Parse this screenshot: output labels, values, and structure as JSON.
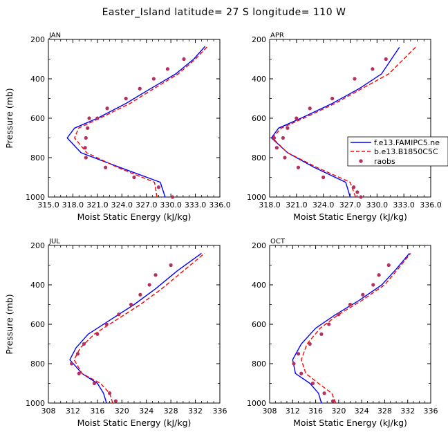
{
  "figure": {
    "title": "Easter_Island  latitude= 27 S longitude= 110 W"
  },
  "colors": {
    "model_line": "#0000ff",
    "coupled_line": "#ff0000",
    "obs_marker": "#b5305f",
    "axis": "#000000"
  },
  "legend": {
    "entries": [
      {
        "label": "f.e13.FAMIPC5.ne",
        "style": "solid-line",
        "color": "#0000ff"
      },
      {
        "label": "b.e13.B1850C5C",
        "style": "dashed-line",
        "color": "#ff0000"
      },
      {
        "label": "raobs",
        "style": "marker",
        "color": "#b5305f"
      }
    ]
  },
  "chart_data": [
    {
      "type": "line",
      "panel": "JAN",
      "title": "JAN",
      "xlabel": "Moist Static Energy (kJ/kg)",
      "ylabel": "Pressure (mb)",
      "xlim": [
        315,
        336
      ],
      "ylim": [
        1000,
        200
      ],
      "xticks": [
        315,
        318,
        321,
        324,
        327,
        330,
        333,
        336
      ],
      "xtick_labels": [
        "315.0",
        "318.0",
        "321.0",
        "324.0",
        "327.0",
        "330.0",
        "333.0",
        "336.0"
      ],
      "yticks": [
        200,
        400,
        600,
        800,
        1000
      ],
      "ytick_labels": [
        "200",
        "400",
        "600",
        "800",
        "1000"
      ],
      "series": [
        {
          "name": "f.e13.FAMIPC5.ne",
          "style": "solid",
          "x": [
            329.3,
            328.7,
            323.8,
            319.0,
            317.3,
            318.2,
            321.0,
            324.5,
            327.5,
            330.6,
            332.8,
            334.2
          ],
          "y": [
            1000,
            925,
            850,
            775,
            700,
            650,
            600,
            525,
            450,
            375,
            300,
            235
          ]
        },
        {
          "name": "b.e13.B1850C5C",
          "style": "dashed",
          "x": [
            328.3,
            328.0,
            323.5,
            319.7,
            318.2,
            318.7,
            321.3,
            325.0,
            327.9,
            330.9,
            333.0,
            334.5
          ],
          "y": [
            1000,
            925,
            850,
            775,
            700,
            650,
            600,
            525,
            450,
            375,
            300,
            235
          ]
        },
        {
          "name": "raobs",
          "style": "markers",
          "x": [
            330.2,
            328.5,
            325.5,
            322.0,
            319.6,
            319.5,
            319.6,
            319.8,
            320.0,
            321.0,
            322.2,
            324.5,
            326.2,
            327.9,
            329.6,
            331.6
          ],
          "y": [
            1000,
            950,
            900,
            850,
            800,
            750,
            700,
            650,
            600,
            600,
            550,
            500,
            450,
            400,
            350,
            300
          ]
        }
      ]
    },
    {
      "type": "line",
      "panel": "APR",
      "title": "APR",
      "xlabel": "Moist Static Energy (kJ/kg)",
      "ylabel": "Pressure (mb)",
      "xlim": [
        318,
        336
      ],
      "ylim": [
        1000,
        200
      ],
      "xticks": [
        318,
        321,
        324,
        327,
        330,
        333,
        336
      ],
      "xtick_labels": [
        "318.0",
        "321.0",
        "324.0",
        "327.0",
        "330.0",
        "333.0",
        "336.0"
      ],
      "yticks": [
        200,
        400,
        600,
        800,
        1000
      ],
      "ytick_labels": [
        "200",
        "400",
        "600",
        "800",
        "1000"
      ],
      "series": [
        {
          "name": "f.e13.FAMIPC5.ne",
          "style": "solid",
          "x": [
            327.0,
            326.5,
            323.0,
            320.0,
            318.2,
            319.0,
            321.5,
            325.0,
            328.0,
            330.5,
            332.5
          ],
          "y": [
            1000,
            925,
            850,
            775,
            700,
            650,
            600,
            525,
            450,
            375,
            240
          ]
        },
        {
          "name": "b.e13.B1850C5C",
          "style": "dashed",
          "x": [
            327.6,
            327.0,
            323.3,
            320.0,
            318.3,
            319.3,
            321.8,
            325.3,
            328.3,
            331.3,
            334.3
          ],
          "y": [
            1000,
            925,
            850,
            775,
            700,
            650,
            600,
            525,
            450,
            375,
            240
          ]
        },
        {
          "name": "raobs",
          "style": "markers",
          "x": [
            328.2,
            327.8,
            327.4,
            324.0,
            321.2,
            319.7,
            318.8,
            318.5,
            319.5,
            320.0,
            321.0,
            322.5,
            325.0,
            327.5,
            329.5,
            331.0
          ],
          "y": [
            1000,
            975,
            950,
            900,
            850,
            800,
            750,
            700,
            700,
            650,
            600,
            550,
            500,
            400,
            350,
            300
          ]
        }
      ]
    },
    {
      "type": "line",
      "panel": "JUL",
      "title": "JUL",
      "xlabel": "Moist Static Energy (kJ/kg)",
      "ylabel": "Pressure (mb)",
      "xlim": [
        308,
        336
      ],
      "ylim": [
        1000,
        200
      ],
      "xticks": [
        308,
        312,
        316,
        320,
        324,
        328,
        332,
        336
      ],
      "xtick_labels": [
        "308",
        "312",
        "316",
        "320",
        "324",
        "328",
        "332",
        "336"
      ],
      "yticks": [
        200,
        400,
        600,
        800,
        1000
      ],
      "ytick_labels": [
        "200",
        "400",
        "600",
        "800",
        "1000"
      ],
      "series": [
        {
          "name": "f.e13.FAMIPC5.ne",
          "style": "solid",
          "x": [
            317.5,
            317.0,
            316.0,
            313.5,
            311.5,
            312.5,
            314.5,
            318.0,
            322.0,
            325.5,
            329.0,
            333.0
          ],
          "y": [
            1000,
            950,
            900,
            850,
            780,
            720,
            650,
            580,
            500,
            420,
            330,
            240
          ]
        },
        {
          "name": "b.e13.B1850C5C",
          "style": "dashed",
          "x": [
            318.5,
            318.0,
            316.5,
            313.5,
            312.2,
            313.2,
            315.5,
            319.0,
            323.0,
            326.5,
            330.0,
            333.5
          ],
          "y": [
            1000,
            950,
            900,
            850,
            780,
            720,
            650,
            580,
            500,
            420,
            330,
            240
          ]
        },
        {
          "name": "raobs",
          "style": "markers",
          "x": [
            319.0,
            318.0,
            315.5,
            313.0,
            311.8,
            312.8,
            313.8,
            316.0,
            317.5,
            319.5,
            321.5,
            323.0,
            324.5,
            325.5,
            328.0
          ],
          "y": [
            990,
            950,
            900,
            850,
            800,
            750,
            700,
            650,
            600,
            550,
            500,
            450,
            400,
            350,
            300
          ]
        }
      ]
    },
    {
      "type": "line",
      "panel": "OCT",
      "title": "OCT",
      "xlabel": "Moist Static Energy (kJ/kg)",
      "ylabel": "Pressure (mb)",
      "xlim": [
        308,
        336
      ],
      "ylim": [
        1000,
        200
      ],
      "xticks": [
        308,
        312,
        316,
        320,
        324,
        328,
        332,
        336
      ],
      "xtick_labels": [
        "308",
        "312",
        "316",
        "320",
        "324",
        "328",
        "332",
        "336"
      ],
      "yticks": [
        200,
        400,
        600,
        800,
        1000
      ],
      "ytick_labels": [
        "200",
        "400",
        "600",
        "800",
        "1000"
      ],
      "series": [
        {
          "name": "f.e13.FAMIPC5.ne",
          "style": "solid",
          "x": [
            317.0,
            316.5,
            315.0,
            312.5,
            312.0,
            313.5,
            316.0,
            319.5,
            323.5,
            327.5,
            330.0,
            332.3
          ],
          "y": [
            1000,
            950,
            900,
            850,
            780,
            700,
            620,
            550,
            480,
            400,
            320,
            240
          ]
        },
        {
          "name": "b.e13.B1850C5C",
          "style": "dashed",
          "x": [
            319.5,
            318.8,
            316.5,
            314.3,
            313.5,
            314.5,
            316.8,
            320.0,
            324.0,
            328.0,
            330.3,
            332.5
          ],
          "y": [
            1000,
            950,
            900,
            850,
            780,
            700,
            620,
            550,
            480,
            400,
            320,
            240
          ]
        },
        {
          "name": "raobs",
          "style": "markers",
          "x": [
            319.0,
            317.5,
            315.5,
            313.5,
            312.2,
            313.0,
            315.0,
            317.0,
            318.3,
            320.0,
            322.0,
            324.2,
            326.0,
            327.0,
            328.7
          ],
          "y": [
            990,
            950,
            900,
            850,
            800,
            750,
            700,
            650,
            600,
            550,
            500,
            450,
            400,
            350,
            300
          ]
        }
      ]
    }
  ]
}
